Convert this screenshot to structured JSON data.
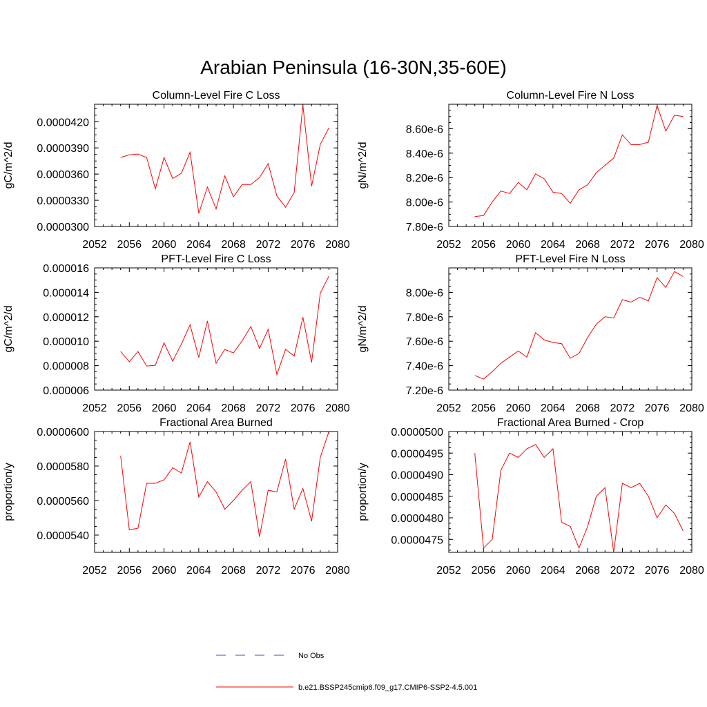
{
  "figure_title": "Arabian Peninsula (16-30N,35-60E)",
  "colors": {
    "model": "#ff0000",
    "obs": "#4a4aa8",
    "axis": "#000000"
  },
  "legend": {
    "obs_label": "No Obs",
    "model_label": "b.e21.BSSP245cmip6.f09_g17.CMIP6-SSP2-4.5.001"
  },
  "chart_data": [
    {
      "type": "line",
      "title": "Column-Level Fire C Loss",
      "ylabel": "gC/m^2/d",
      "xlim": [
        2052,
        2080
      ],
      "ylim": [
        3e-05,
        4.4e-05
      ],
      "xticks": [
        2052,
        2056,
        2060,
        2064,
        2068,
        2072,
        2076,
        2080
      ],
      "yticks": [
        3e-05,
        3.3e-05,
        3.6e-05,
        3.9e-05,
        4.2e-05
      ],
      "ytick_labels": [
        "0.0000300",
        "0.0000330",
        "0.0000360",
        "0.0000390",
        "0.0000420"
      ],
      "x": [
        2055,
        2056,
        2057,
        2058,
        2059,
        2060,
        2061,
        2062,
        2063,
        2064,
        2065,
        2066,
        2067,
        2068,
        2069,
        2070,
        2071,
        2072,
        2073,
        2074,
        2075,
        2076,
        2077,
        2078,
        2079
      ],
      "values": [
        3.79e-05,
        3.82e-05,
        3.83e-05,
        3.79e-05,
        3.43e-05,
        3.79e-05,
        3.55e-05,
        3.61e-05,
        3.85e-05,
        3.15e-05,
        3.45e-05,
        3.2e-05,
        3.58e-05,
        3.34e-05,
        3.48e-05,
        3.48e-05,
        3.56e-05,
        3.72e-05,
        3.35e-05,
        3.22e-05,
        3.39e-05,
        4.39e-05,
        3.46e-05,
        3.94e-05,
        4.13e-05
      ]
    },
    {
      "type": "line",
      "title": "Column-Level Fire N Loss",
      "ylabel": "gN/m^2/d",
      "xlim": [
        2052,
        2080
      ],
      "ylim": [
        7.8e-06,
        8.8e-06
      ],
      "xticks": [
        2052,
        2056,
        2060,
        2064,
        2068,
        2072,
        2076,
        2080
      ],
      "yticks": [
        7.8e-06,
        8e-06,
        8.2e-06,
        8.4e-06,
        8.6e-06
      ],
      "ytick_labels": [
        "7.80e-6",
        "8.00e-6",
        "8.20e-6",
        "8.40e-6",
        "8.60e-6"
      ],
      "x": [
        2055,
        2056,
        2057,
        2058,
        2059,
        2060,
        2061,
        2062,
        2063,
        2064,
        2065,
        2066,
        2067,
        2068,
        2069,
        2070,
        2071,
        2072,
        2073,
        2074,
        2075,
        2076,
        2077,
        2078,
        2079
      ],
      "values": [
        7.88e-06,
        7.89e-06,
        8e-06,
        8.09e-06,
        8.07e-06,
        8.16e-06,
        8.1e-06,
        8.23e-06,
        8.19e-06,
        8.08e-06,
        8.07e-06,
        7.99e-06,
        8.1e-06,
        8.14e-06,
        8.24e-06,
        8.3e-06,
        8.36e-06,
        8.55e-06,
        8.47e-06,
        8.47e-06,
        8.49e-06,
        8.79e-06,
        8.58e-06,
        8.71e-06,
        8.7e-06
      ]
    },
    {
      "type": "line",
      "title": "PFT-Level Fire C Loss",
      "ylabel": "gC/m^2/d",
      "xlim": [
        2052,
        2080
      ],
      "ylim": [
        6e-06,
        1.6e-05
      ],
      "xticks": [
        2052,
        2056,
        2060,
        2064,
        2068,
        2072,
        2076,
        2080
      ],
      "yticks": [
        6e-06,
        8e-06,
        1e-05,
        1.2e-05,
        1.4e-05,
        1.6e-05
      ],
      "ytick_labels": [
        "0.000006",
        "0.000008",
        "0.000010",
        "0.000012",
        "0.000014",
        "0.000016"
      ],
      "x": [
        2055,
        2056,
        2057,
        2058,
        2059,
        2060,
        2061,
        2062,
        2063,
        2064,
        2065,
        2066,
        2067,
        2068,
        2069,
        2070,
        2071,
        2072,
        2073,
        2074,
        2075,
        2076,
        2077,
        2078,
        2079
      ],
      "values": [
        9.15e-06,
        8.32e-06,
        9.15e-06,
        7.97e-06,
        8.03e-06,
        9.86e-06,
        8.37e-06,
        9.77e-06,
        1.134e-05,
        8.67e-06,
        1.166e-05,
        8.2e-06,
        9.33e-06,
        9.04e-06,
        1.003e-05,
        1.12e-05,
        9.41e-06,
        1.097e-05,
        7.28e-06,
        9.33e-06,
        8.79e-06,
        1.197e-05,
        8.26e-06,
        1.394e-05,
        1.532e-05
      ]
    },
    {
      "type": "line",
      "title": "PFT-Level Fire N Loss",
      "ylabel": "gN/m^2/d",
      "xlim": [
        2052,
        2080
      ],
      "ylim": [
        7.2e-06,
        8.2e-06
      ],
      "xticks": [
        2052,
        2056,
        2060,
        2064,
        2068,
        2072,
        2076,
        2080
      ],
      "yticks": [
        7.2e-06,
        7.4e-06,
        7.6e-06,
        7.8e-06,
        8e-06
      ],
      "ytick_labels": [
        "7.20e-6",
        "7.40e-6",
        "7.60e-6",
        "7.80e-6",
        "8.00e-6"
      ],
      "x": [
        2055,
        2056,
        2057,
        2058,
        2059,
        2060,
        2061,
        2062,
        2063,
        2064,
        2065,
        2066,
        2067,
        2068,
        2069,
        2070,
        2071,
        2072,
        2073,
        2074,
        2075,
        2076,
        2077,
        2078,
        2079
      ],
      "values": [
        7.32e-06,
        7.29e-06,
        7.35e-06,
        7.42e-06,
        7.47e-06,
        7.52e-06,
        7.47e-06,
        7.67e-06,
        7.61e-06,
        7.59e-06,
        7.58e-06,
        7.46e-06,
        7.5e-06,
        7.63e-06,
        7.74e-06,
        7.8e-06,
        7.79e-06,
        7.94e-06,
        7.92e-06,
        7.96e-06,
        7.93e-06,
        8.12e-06,
        8.04e-06,
        8.17e-06,
        8.13e-06
      ]
    },
    {
      "type": "line",
      "title": "Fractional Area Burned",
      "ylabel": "proportion/y",
      "xlim": [
        2052,
        2080
      ],
      "ylim": [
        5.3e-05,
        6e-05
      ],
      "xticks": [
        2052,
        2056,
        2060,
        2064,
        2068,
        2072,
        2076,
        2080
      ],
      "yticks": [
        5.4e-05,
        5.6e-05,
        5.8e-05,
        6e-05
      ],
      "ytick_labels": [
        "0.0000540",
        "0.0000560",
        "0.0000580",
        "0.0000600"
      ],
      "x": [
        2055,
        2056,
        2057,
        2058,
        2059,
        2060,
        2061,
        2062,
        2063,
        2064,
        2065,
        2066,
        2067,
        2068,
        2069,
        2070,
        2071,
        2072,
        2073,
        2074,
        2075,
        2076,
        2077,
        2078,
        2079
      ],
      "values": [
        5.86e-05,
        5.43e-05,
        5.44e-05,
        5.7e-05,
        5.7e-05,
        5.72e-05,
        5.79e-05,
        5.76e-05,
        5.94e-05,
        5.62e-05,
        5.71e-05,
        5.65e-05,
        5.55e-05,
        5.6e-05,
        5.66e-05,
        5.71e-05,
        5.39e-05,
        5.66e-05,
        5.65e-05,
        5.84e-05,
        5.55e-05,
        5.67e-05,
        5.48e-05,
        5.85e-05,
        6e-05
      ]
    },
    {
      "type": "line",
      "title": "Fractional Area Burned - Crop",
      "ylabel": "proportion/y",
      "xlim": [
        2052,
        2080
      ],
      "ylim": [
        4.72e-05,
        5e-05
      ],
      "xticks": [
        2052,
        2056,
        2060,
        2064,
        2068,
        2072,
        2076,
        2080
      ],
      "yticks": [
        4.75e-05,
        4.8e-05,
        4.85e-05,
        4.9e-05,
        4.95e-05,
        5e-05
      ],
      "ytick_labels": [
        "0.0000475",
        "0.0000480",
        "0.0000485",
        "0.0000490",
        "0.0000495",
        "0.0000500"
      ],
      "x": [
        2055,
        2056,
        2057,
        2058,
        2059,
        2060,
        2061,
        2062,
        2063,
        2064,
        2065,
        2066,
        2067,
        2068,
        2069,
        2070,
        2071,
        2072,
        2073,
        2074,
        2075,
        2076,
        2077,
        2078,
        2079
      ],
      "values": [
        4.95e-05,
        4.73e-05,
        4.75e-05,
        4.91e-05,
        4.95e-05,
        4.94e-05,
        4.96e-05,
        4.97e-05,
        4.94e-05,
        4.96e-05,
        4.79e-05,
        4.78e-05,
        4.73e-05,
        4.78e-05,
        4.85e-05,
        4.87e-05,
        4.72e-05,
        4.88e-05,
        4.87e-05,
        4.88e-05,
        4.85e-05,
        4.8e-05,
        4.83e-05,
        4.81e-05,
        4.77e-05
      ]
    }
  ]
}
